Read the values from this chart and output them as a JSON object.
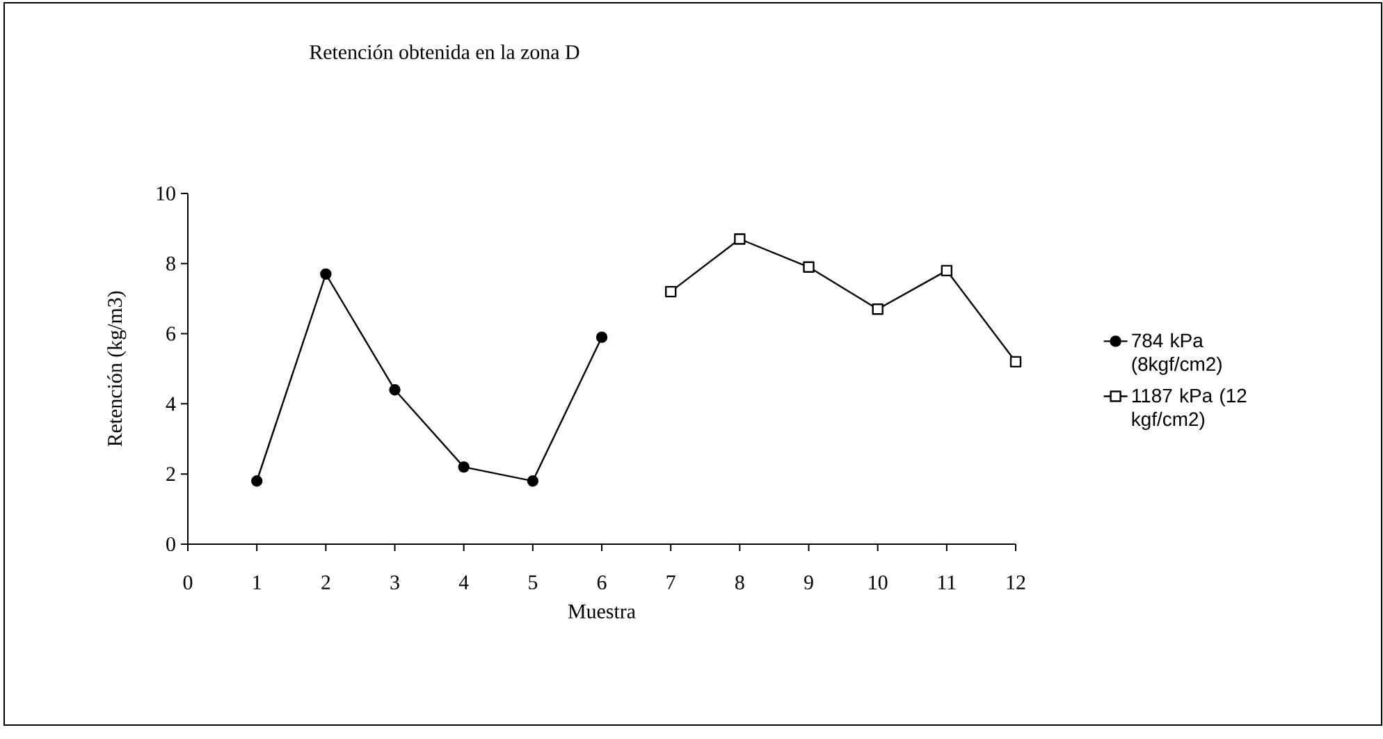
{
  "chart_data": {
    "type": "line",
    "title": "Retención obtenida en la zona D",
    "xlabel": "Muestra",
    "ylabel": "Retención (kg/m3)",
    "xlim": [
      0,
      12
    ],
    "xticks": [
      0,
      1,
      2,
      3,
      4,
      5,
      6,
      7,
      8,
      9,
      10,
      11,
      12
    ],
    "ylim": [
      0,
      10
    ],
    "yticks": [
      0,
      2,
      4,
      6,
      8,
      10
    ],
    "legend": "right",
    "grid": false,
    "line_style": "solid",
    "series": [
      {
        "name": "784 kPa (8kgf/cm2)",
        "color": "#000000",
        "marker": "circle",
        "x": [
          1,
          2,
          3,
          4,
          5,
          6
        ],
        "values": [
          1.8,
          7.7,
          4.4,
          2.2,
          1.8,
          5.9
        ]
      },
      {
        "name": "1187 kPa (12 kgf/cm2)",
        "color": "#000000",
        "marker": "square",
        "x": [
          7,
          8,
          9,
          10,
          11,
          12
        ],
        "values": [
          7.2,
          8.7,
          7.9,
          6.7,
          7.8,
          5.2
        ]
      }
    ]
  }
}
